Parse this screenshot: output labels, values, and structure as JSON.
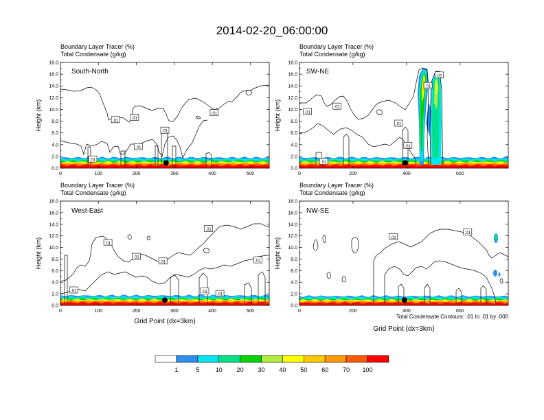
{
  "title": "2014-02-20_06:00:00",
  "colors": {
    "scale": [
      "#ffffff",
      "#2f8ef0",
      "#00e6f0",
      "#00e08a",
      "#00d400",
      "#b0f03a",
      "#ffff00",
      "#ffc800",
      "#ff9a00",
      "#ff5a00",
      "#ff0000"
    ],
    "condensate_contour": "#000000",
    "location_marker": "#000000"
  },
  "chart_data": [
    {
      "type": "contour",
      "name": "South-North",
      "panel_label": "South-North",
      "header_1": "Boundary Layer Tracer   (%)",
      "header_2": "Total Condensate   (g/kg)",
      "ylabel": "Height (km)",
      "xlabel": "",
      "xlim": [
        0,
        550
      ],
      "ylim": [
        0,
        18
      ],
      "xticks": [
        0,
        100,
        200,
        300,
        400,
        500
      ],
      "yticks": [
        "0.0",
        "2.0",
        "4.0",
        "6.0",
        "8.0",
        "10.0",
        "12.0",
        "14.0",
        "16.0",
        "18.0"
      ],
      "tracer_top_km": 1.8,
      "contour_labels": [
        {
          "text": ".01",
          "x": 145,
          "y": 8.2
        },
        {
          "text": ".01",
          "x": 195,
          "y": 8.6
        },
        {
          "text": ".01",
          "x": 275,
          "y": 6.4
        },
        {
          "text": ".01",
          "x": 405,
          "y": 9.4
        },
        {
          "text": ".01",
          "x": 205,
          "y": 3.6
        },
        {
          "text": ".01",
          "x": 85,
          "y": 1.5
        }
      ],
      "marker": {
        "x": 278,
        "y": 0.9
      }
    },
    {
      "type": "contour",
      "name": "SW-NE",
      "panel_label": "SW-NE",
      "header_1": "Boundary Layer Tracer   (%)",
      "header_2": "Total Condensate   (g/kg)",
      "ylabel": "Height (km)",
      "xlabel": "",
      "xlim": [
        0,
        780
      ],
      "ylim": [
        0,
        18
      ],
      "xticks": [
        0,
        200,
        400,
        600
      ],
      "yticks": [
        "0.0",
        "2.0",
        "4.0",
        "6.0",
        "8.0",
        "10.0",
        "12.0",
        "14.0",
        "16.0",
        "18.0"
      ],
      "tracer_top_km": 1.8,
      "contour_labels": [
        {
          "text": ".01",
          "x": 30,
          "y": 9.6
        },
        {
          "text": ".01",
          "x": 140,
          "y": 10.5
        },
        {
          "text": ".01",
          "x": 370,
          "y": 7.6
        },
        {
          "text": ".01",
          "x": 405,
          "y": 3.8
        },
        {
          "text": ".01",
          "x": 90,
          "y": 1.1
        },
        {
          "text": ".01",
          "x": 480,
          "y": 14.0
        },
        {
          "text": ".01",
          "x": 522,
          "y": 15.8
        }
      ],
      "marker": {
        "x": 395,
        "y": 0.9
      }
    },
    {
      "type": "contour",
      "name": "West-East",
      "panel_label": "West-East",
      "header_1": "Boundary Layer Tracer   (%)",
      "header_2": "Total Condensate   (g/kg)",
      "ylabel": "Height (km)",
      "xlabel": "Grid Point (dx=3km)",
      "xlim": [
        0,
        550
      ],
      "ylim": [
        0,
        18
      ],
      "xticks": [
        0,
        100,
        200,
        300,
        400,
        500
      ],
      "yticks": [
        "0.0",
        "2.0",
        "4.0",
        "6.0",
        "8.0",
        "10.0",
        "12.0",
        "14.0",
        "16.0",
        "18.0"
      ],
      "tracer_top_km": 1.7,
      "contour_labels": [
        {
          "text": ".01",
          "x": 125,
          "y": 10.8
        },
        {
          "text": ".01",
          "x": 390,
          "y": 13.2
        },
        {
          "text": ".01",
          "x": 200,
          "y": 8.4
        },
        {
          "text": ".01",
          "x": 270,
          "y": 7.6
        },
        {
          "text": ".01",
          "x": 520,
          "y": 7.8
        },
        {
          "text": ".01",
          "x": 35,
          "y": 2.6
        },
        {
          "text": ".01",
          "x": 380,
          "y": 2.4
        },
        {
          "text": ".01",
          "x": 420,
          "y": 2.0
        }
      ],
      "marker": {
        "x": 275,
        "y": 0.9
      }
    },
    {
      "type": "contour",
      "name": "NW-SE",
      "panel_label": "NW-SE",
      "header_1": "Boundary Layer Tracer   (%)",
      "header_2": "Total Condensate   (g/kg)",
      "ylabel": "Height (km)",
      "xlabel": "Grid Point (dx=3km)",
      "xlim": [
        0,
        780
      ],
      "ylim": [
        0,
        18
      ],
      "xticks": [
        0,
        200,
        400,
        600
      ],
      "yticks": [
        "0.0",
        "2.0",
        "4.0",
        "6.0",
        "8.0",
        "10.0",
        "12.0",
        "14.0",
        "16.0",
        "18.0"
      ],
      "tracer_top_km": 1.6,
      "contour_labels": [
        {
          "text": ".01",
          "x": 350,
          "y": 11.8
        },
        {
          "text": ".01",
          "x": 628,
          "y": 12.6
        }
      ],
      "marker": {
        "x": 392,
        "y": 0.9
      },
      "footnote": "Total Condensate Contours: .01 to .01 by .000"
    }
  ],
  "colorbar": {
    "labels": [
      "1",
      "5",
      "10",
      "20",
      "30",
      "40",
      "50",
      "60",
      "70",
      "100"
    ]
  }
}
